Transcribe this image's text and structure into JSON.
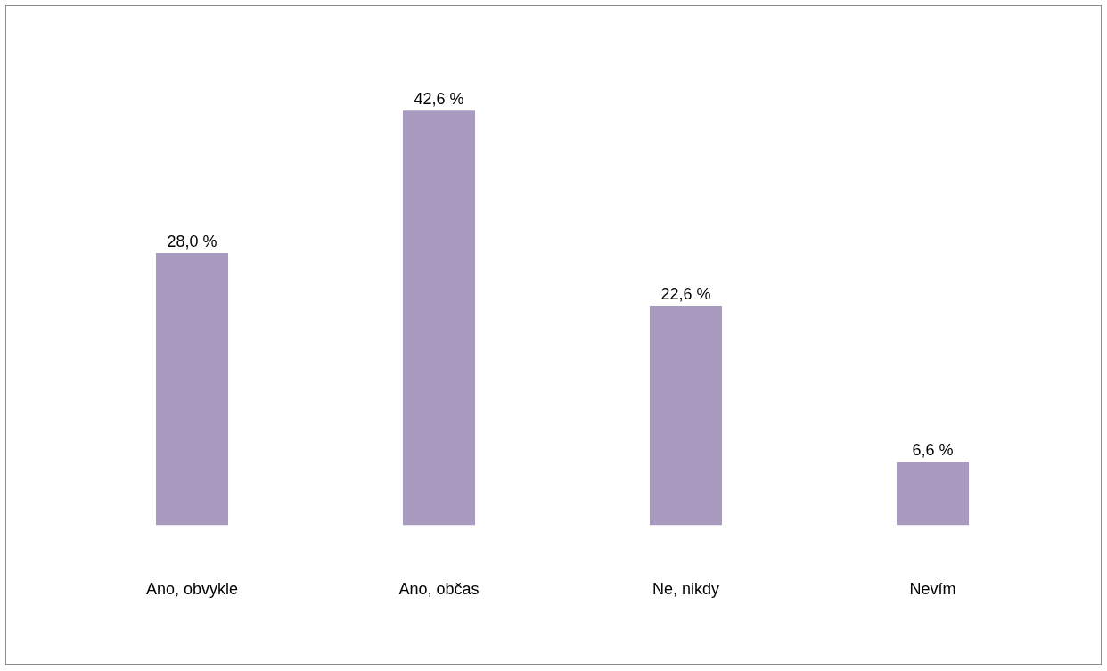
{
  "chart_data": {
    "type": "bar",
    "categories": [
      "Ano, obvykle",
      "Ano, občas",
      "Ne, nikdy",
      "Nevím"
    ],
    "values": [
      28.0,
      42.6,
      22.6,
      6.6
    ],
    "value_labels": [
      "28,0 %",
      "42,6 %",
      "22,6 %",
      "6,6 %"
    ],
    "color": "#a99bbf",
    "grid": false,
    "legend": false
  }
}
